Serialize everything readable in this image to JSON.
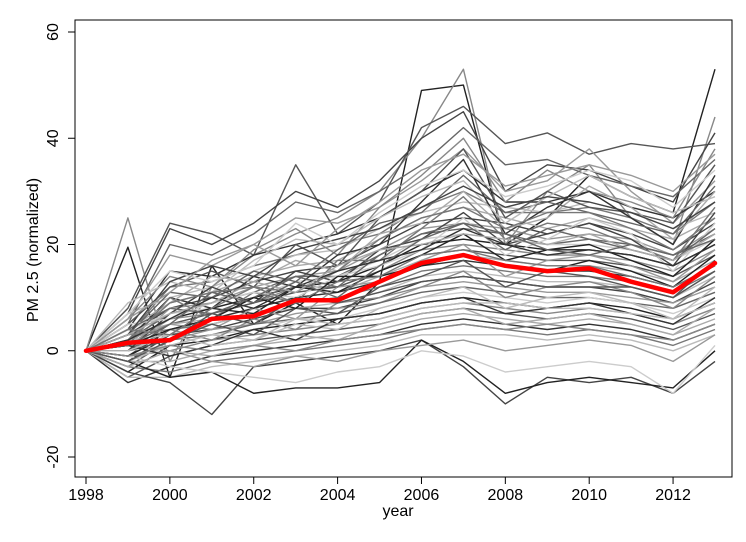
{
  "chart_data": {
    "type": "line",
    "title": "",
    "xlabel": "year",
    "ylabel": "PM 2.5 (normalized)",
    "xlim": [
      1998,
      2013
    ],
    "ylim": [
      -20,
      60
    ],
    "xticks": [
      "1998",
      "2000",
      "2002",
      "2004",
      "2006",
      "2008",
      "2010",
      "2012"
    ],
    "yticks": [
      "-20",
      "0",
      "20",
      "40",
      "60"
    ],
    "x": [
      1998,
      1999,
      2000,
      2001,
      2002,
      2003,
      2004,
      2005,
      2006,
      2007,
      2008,
      2009,
      2010,
      2011,
      2012,
      2013
    ],
    "grid": false,
    "legend": "none",
    "mean_color": "#ff0000",
    "mean_series": {
      "values": [
        0,
        1.5,
        2,
        6,
        6.5,
        9.5,
        9.5,
        13,
        16.5,
        18,
        16,
        15,
        15.5,
        13,
        11,
        16.5
      ]
    },
    "series": [
      {
        "color": "#222222",
        "values": [
          0,
          19.5,
          -5,
          16,
          5,
          9,
          5,
          13,
          49,
          50,
          20,
          25,
          33,
          29,
          26,
          53
        ]
      },
      {
        "color": "#888888",
        "values": [
          0,
          25,
          -2,
          12,
          18,
          22,
          25,
          30,
          40,
          53,
          20,
          30,
          35,
          25,
          20,
          44
        ]
      },
      {
        "color": "#555555",
        "values": [
          0,
          8,
          24,
          22,
          18,
          35,
          22,
          28,
          42,
          46,
          39,
          41,
          37,
          39,
          38,
          39
        ]
      },
      {
        "color": "#444444",
        "values": [
          0,
          7,
          23,
          20,
          24,
          30,
          27,
          32,
          40,
          45,
          30,
          35,
          34,
          31,
          28,
          41
        ]
      },
      {
        "color": "#666666",
        "values": [
          0,
          5,
          20,
          18,
          22,
          28,
          26,
          30,
          35,
          42,
          35,
          36,
          33,
          31,
          29,
          36
        ]
      },
      {
        "color": "#999999",
        "values": [
          0,
          6,
          18,
          16,
          20,
          25,
          24,
          27,
          32,
          38,
          30,
          32,
          38,
          30,
          24,
          32
        ]
      },
      {
        "color": "#333333",
        "values": [
          0,
          4,
          15,
          14,
          18,
          20,
          22,
          25,
          30,
          34,
          28,
          28,
          30,
          27,
          25,
          30
        ]
      },
      {
        "color": "#777777",
        "values": [
          0,
          3,
          12,
          13,
          16,
          18,
          20,
          22,
          27,
          30,
          26,
          26,
          27,
          25,
          22,
          28
        ]
      },
      {
        "color": "#bbbbbb",
        "values": [
          0,
          7,
          10,
          12,
          15,
          18,
          19,
          23,
          26,
          28,
          27,
          26,
          28,
          26,
          23,
          26
        ]
      },
      {
        "color": "#aaaaaa",
        "values": [
          0,
          2,
          9,
          11,
          14,
          16,
          17,
          21,
          25,
          27,
          25,
          23,
          25,
          23,
          21,
          25
        ]
      },
      {
        "color": "#444444",
        "values": [
          0,
          3,
          8,
          10,
          13,
          15,
          16,
          20,
          24,
          25,
          24,
          22,
          24,
          22,
          19,
          24
        ]
      },
      {
        "color": "#999999",
        "values": [
          0,
          1,
          8,
          9,
          12,
          14,
          15,
          19,
          23,
          24,
          23,
          21,
          22,
          21,
          18,
          23
        ]
      },
      {
        "color": "#666666",
        "values": [
          0,
          2,
          7,
          9,
          11,
          14,
          14,
          18,
          22,
          23,
          22,
          20,
          21,
          20,
          18,
          22
        ]
      },
      {
        "color": "#cccccc",
        "values": [
          0,
          4,
          7,
          8,
          10,
          13,
          14,
          17,
          21,
          22,
          21,
          20,
          20,
          19,
          17,
          21
        ]
      },
      {
        "color": "#222222",
        "values": [
          0,
          2,
          6,
          8,
          10,
          12,
          13,
          16,
          20,
          21,
          20,
          19,
          19,
          18,
          16,
          20
        ]
      },
      {
        "color": "#888888",
        "values": [
          0,
          1,
          6,
          7,
          9,
          12,
          12,
          15,
          19,
          20,
          19,
          18,
          18,
          17,
          15,
          19
        ]
      },
      {
        "color": "#555555",
        "values": [
          0,
          0,
          5,
          7,
          9,
          11,
          12,
          15,
          18,
          19,
          18,
          17,
          17,
          16,
          14,
          18
        ]
      },
      {
        "color": "#aaaaaa",
        "values": [
          0,
          3,
          5,
          6,
          8,
          10,
          11,
          14,
          17,
          18,
          17,
          16,
          16,
          15,
          13,
          17
        ]
      },
      {
        "color": "#333333",
        "values": [
          0,
          -1,
          4,
          6,
          8,
          10,
          11,
          13,
          16,
          17,
          16,
          15,
          15,
          14,
          12,
          16
        ]
      },
      {
        "color": "#777777",
        "values": [
          0,
          0,
          4,
          5,
          7,
          9,
          10,
          12,
          15,
          16,
          15,
          14,
          14,
          13,
          11,
          15
        ]
      },
      {
        "color": "#bbbbbb",
        "values": [
          0,
          2,
          3,
          5,
          7,
          8,
          9,
          11,
          14,
          15,
          14,
          13,
          13,
          12,
          10,
          14
        ]
      },
      {
        "color": "#444444",
        "values": [
          0,
          -2,
          3,
          4,
          6,
          8,
          8,
          10,
          13,
          14,
          13,
          12,
          12,
          11,
          9,
          13
        ]
      },
      {
        "color": "#999999",
        "values": [
          0,
          1,
          2,
          4,
          5,
          7,
          8,
          9,
          12,
          13,
          12,
          11,
          11,
          10,
          9,
          12
        ]
      },
      {
        "color": "#666666",
        "values": [
          0,
          -3,
          2,
          3,
          5,
          6,
          7,
          9,
          11,
          12,
          11,
          10,
          10,
          9,
          8,
          11
        ]
      },
      {
        "color": "#cccccc",
        "values": [
          0,
          0,
          1,
          3,
          4,
          6,
          6,
          8,
          10,
          11,
          10,
          9,
          10,
          9,
          7,
          10
        ]
      },
      {
        "color": "#222222",
        "values": [
          0,
          -4,
          1,
          2,
          4,
          5,
          6,
          7,
          9,
          10,
          9,
          8,
          9,
          8,
          6,
          9
        ]
      },
      {
        "color": "#888888",
        "values": [
          0,
          -1,
          0,
          2,
          3,
          4,
          5,
          6,
          8,
          9,
          8,
          7,
          8,
          7,
          5,
          8
        ]
      },
      {
        "color": "#555555",
        "values": [
          0,
          -5,
          -1,
          1,
          2,
          3,
          4,
          5,
          7,
          8,
          7,
          6,
          7,
          6,
          4,
          7
        ]
      },
      {
        "color": "#aaaaaa",
        "values": [
          0,
          -2,
          -2,
          0,
          1,
          2,
          3,
          4,
          6,
          7,
          6,
          5,
          6,
          5,
          3,
          6
        ]
      },
      {
        "color": "#333333",
        "values": [
          0,
          -6,
          -3,
          -1,
          0,
          1,
          2,
          3,
          5,
          6,
          5,
          4,
          5,
          4,
          2,
          5
        ]
      },
      {
        "color": "#777777",
        "values": [
          0,
          -3,
          -4,
          -2,
          -1,
          0,
          1,
          2,
          4,
          5,
          4,
          3,
          4,
          3,
          1,
          4
        ]
      },
      {
        "color": "#bbbbbb",
        "values": [
          0,
          -5,
          -5,
          -3,
          -2,
          -1,
          0,
          1,
          3,
          3,
          3,
          2,
          3,
          2,
          0,
          3
        ]
      },
      {
        "color": "#444444",
        "values": [
          0,
          -4,
          -6,
          -12,
          -3,
          -2,
          -1,
          0,
          2,
          -3,
          -10,
          -5,
          -6,
          -5,
          -8,
          -2
        ]
      },
      {
        "color": "#222222",
        "values": [
          0,
          -2,
          -5,
          -4,
          -8,
          -7,
          -7,
          -6,
          2,
          -2,
          -8,
          -6,
          -5,
          -6,
          -7,
          0
        ]
      },
      {
        "color": "#cccccc",
        "values": [
          0,
          -1,
          -3,
          -4,
          -5,
          -6,
          -4,
          -3,
          0,
          -1,
          -4,
          -3,
          -2,
          -3,
          -8,
          1
        ]
      },
      {
        "color": "#999999",
        "values": [
          0,
          1,
          0,
          -2,
          -3,
          -1,
          -2,
          0,
          1,
          2,
          0,
          1,
          2,
          1,
          -2,
          3
        ]
      },
      {
        "color": "#555555",
        "values": [
          0,
          5,
          12,
          15,
          12,
          20,
          16,
          25,
          30,
          38,
          25,
          30,
          27,
          26,
          24,
          35
        ]
      },
      {
        "color": "#888888",
        "values": [
          0,
          6,
          14,
          12,
          19,
          23,
          18,
          27,
          33,
          40,
          28,
          34,
          30,
          28,
          25,
          38
        ]
      },
      {
        "color": "#333333",
        "values": [
          0,
          2,
          10,
          8,
          14,
          12,
          18,
          20,
          28,
          36,
          22,
          27,
          30,
          25,
          20,
          33
        ]
      },
      {
        "color": "#aaaaaa",
        "values": [
          0,
          4,
          9,
          14,
          13,
          17,
          15,
          22,
          24,
          30,
          23,
          25,
          31,
          27,
          21,
          30
        ]
      },
      {
        "color": "#666666",
        "values": [
          0,
          3,
          11,
          10,
          15,
          13,
          19,
          24,
          26,
          33,
          26,
          28,
          26,
          24,
          22,
          31
        ]
      },
      {
        "color": "#bbbbbb",
        "values": [
          0,
          9,
          13,
          11,
          17,
          21,
          20,
          25,
          29,
          32,
          24,
          29,
          33,
          29,
          26,
          29
        ]
      },
      {
        "color": "#444444",
        "values": [
          0,
          0,
          7,
          12,
          9,
          15,
          13,
          19,
          21,
          26,
          20,
          22,
          24,
          21,
          16,
          26
        ]
      },
      {
        "color": "#777777",
        "values": [
          0,
          1,
          10,
          6,
          11,
          9,
          17,
          17,
          23,
          29,
          21,
          24,
          23,
          20,
          17,
          27
        ]
      },
      {
        "color": "#cccccc",
        "values": [
          0,
          5,
          6,
          9,
          11,
          10,
          14,
          16,
          19,
          25,
          18,
          21,
          25,
          22,
          15,
          24
        ]
      },
      {
        "color": "#222222",
        "values": [
          0,
          -1,
          3,
          8,
          7,
          12,
          11,
          15,
          18,
          22,
          17,
          19,
          20,
          17,
          14,
          21
        ]
      },
      {
        "color": "#999999",
        "values": [
          0,
          2,
          5,
          4,
          8,
          6,
          12,
          13,
          17,
          20,
          14,
          17,
          18,
          16,
          13,
          19
        ]
      },
      {
        "color": "#555555",
        "values": [
          0,
          0,
          2,
          5,
          3,
          8,
          7,
          12,
          14,
          17,
          12,
          15,
          14,
          12,
          10,
          17
        ]
      },
      {
        "color": "#888888",
        "values": [
          0,
          3,
          4,
          2,
          6,
          4,
          9,
          10,
          12,
          15,
          10,
          12,
          13,
          11,
          8,
          14
        ]
      },
      {
        "color": "#bbbbbb",
        "values": [
          0,
          -2,
          1,
          3,
          2,
          5,
          4,
          8,
          10,
          12,
          8,
          10,
          11,
          9,
          6,
          12
        ]
      },
      {
        "color": "#333333",
        "values": [
          0,
          1,
          -1,
          1,
          4,
          2,
          6,
          7,
          9,
          10,
          7,
          8,
          9,
          7,
          5,
          10
        ]
      },
      {
        "color": "#aaaaaa",
        "values": [
          0,
          -3,
          0,
          -1,
          1,
          3,
          2,
          5,
          7,
          8,
          5,
          6,
          7,
          5,
          3,
          8
        ]
      },
      {
        "color": "#666666",
        "values": [
          0,
          4,
          8,
          7,
          10,
          14,
          12,
          18,
          22,
          24,
          19,
          23,
          21,
          19,
          17,
          23
        ]
      },
      {
        "color": "#777777",
        "values": [
          0,
          2,
          9,
          11,
          12,
          11,
          15,
          21,
          25,
          27,
          23,
          26,
          26,
          23,
          19,
          25
        ]
      },
      {
        "color": "#444444",
        "values": [
          0,
          3,
          13,
          16,
          14,
          19,
          21,
          23,
          27,
          31,
          27,
          29,
          28,
          26,
          23,
          28
        ]
      },
      {
        "color": "#cccccc",
        "values": [
          0,
          7,
          15,
          13,
          16,
          24,
          20,
          26,
          31,
          34,
          29,
          31,
          34,
          32,
          27,
          34
        ]
      },
      {
        "color": "#999999",
        "values": [
          0,
          6,
          11,
          17,
          20,
          16,
          23,
          28,
          34,
          37,
          31,
          33,
          35,
          33,
          30,
          37
        ]
      },
      {
        "color": "#222222",
        "values": [
          0,
          1,
          4,
          6,
          10,
          8,
          14,
          14,
          16,
          18,
          16,
          15,
          17,
          15,
          12,
          18
        ]
      },
      {
        "color": "#555555",
        "values": [
          0,
          -2,
          2,
          7,
          5,
          10,
          9,
          11,
          13,
          14,
          13,
          12,
          12,
          12,
          10,
          15
        ]
      },
      {
        "color": "#bbbbbb",
        "values": [
          0,
          0,
          3,
          1,
          2,
          6,
          5,
          6,
          8,
          9,
          9,
          8,
          8,
          7,
          6,
          9
        ]
      },
      {
        "color": "#888888",
        "values": [
          0,
          -1,
          1,
          0,
          1,
          0,
          2,
          3,
          4,
          5,
          4,
          5,
          4,
          3,
          2,
          5
        ]
      },
      {
        "color": "#333333",
        "values": [
          0,
          2,
          6,
          10,
          8,
          12,
          15,
          17,
          19,
          23,
          20,
          18,
          19,
          18,
          16,
          20
        ]
      },
      {
        "color": "#aaaaaa",
        "values": [
          0,
          3,
          7,
          9,
          13,
          11,
          16,
          19,
          20,
          22,
          21,
          20,
          22,
          19,
          17,
          22
        ]
      },
      {
        "color": "#666666",
        "values": [
          0,
          1,
          5,
          11,
          9,
          13,
          10,
          16,
          21,
          24,
          22,
          19,
          18,
          20,
          18,
          21
        ]
      },
      {
        "color": "#777777",
        "values": [
          0,
          4,
          3,
          8,
          12,
          9,
          13,
          14,
          18,
          19,
          17,
          16,
          16,
          14,
          12,
          16
        ]
      }
    ]
  }
}
